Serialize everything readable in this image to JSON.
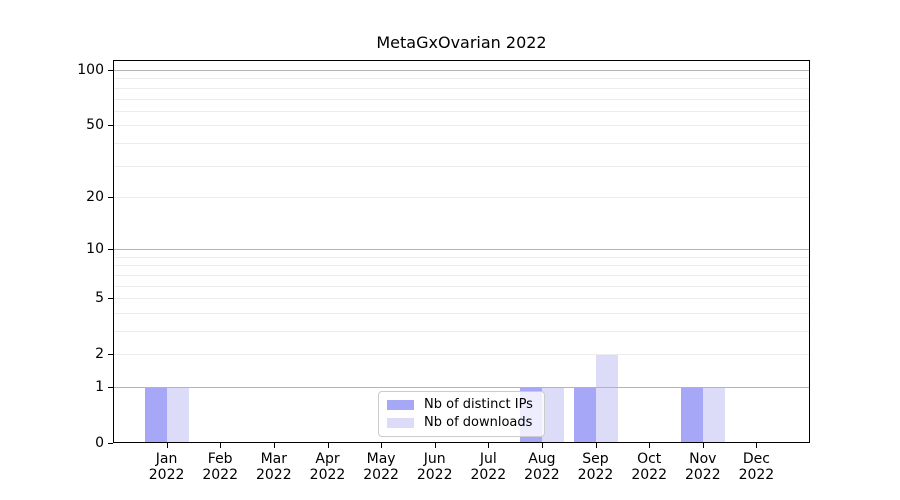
{
  "colors": {
    "distinct_ips": "#a7a7f7",
    "downloads": "#dcdcf9",
    "grid_major": "#b4b4b4",
    "grid_minor": "#ececec",
    "spine": "#000000",
    "legend_border": "#cccccc",
    "text": "#000000"
  },
  "chart_data": {
    "type": "bar",
    "title": "MetaGxOvarian 2022",
    "xlabel": "",
    "ylabel": "",
    "yscale": "log1p",
    "ylim": [
      0,
      113
    ],
    "grid": "on",
    "legend_position": "lower center",
    "months": [
      {
        "name": "Jan",
        "year": "2022"
      },
      {
        "name": "Feb",
        "year": "2022"
      },
      {
        "name": "Mar",
        "year": "2022"
      },
      {
        "name": "Apr",
        "year": "2022"
      },
      {
        "name": "May",
        "year": "2022"
      },
      {
        "name": "Jun",
        "year": "2022"
      },
      {
        "name": "Jul",
        "year": "2022"
      },
      {
        "name": "Aug",
        "year": "2022"
      },
      {
        "name": "Sep",
        "year": "2022"
      },
      {
        "name": "Oct",
        "year": "2022"
      },
      {
        "name": "Nov",
        "year": "2022"
      },
      {
        "name": "Dec",
        "year": "2022"
      }
    ],
    "categories": [
      "Jan 2022",
      "Feb 2022",
      "Mar 2022",
      "Apr 2022",
      "May 2022",
      "Jun 2022",
      "Jul 2022",
      "Aug 2022",
      "Sep 2022",
      "Oct 2022",
      "Nov 2022",
      "Dec 2022"
    ],
    "series": [
      {
        "key": "distinct-ips",
        "name": "Nb of distinct IPs",
        "color": "#a7a7f7",
        "values": [
          1,
          0,
          0,
          0,
          0,
          0,
          0,
          1,
          1,
          0,
          1,
          0
        ]
      },
      {
        "key": "downloads",
        "name": "Nb of downloads",
        "color": "#dcdcf9",
        "values": [
          1,
          0,
          0,
          0,
          0,
          0,
          0,
          1,
          2,
          0,
          1,
          0
        ]
      }
    ],
    "y_ticks": [
      {
        "label": "100",
        "value": 100
      },
      {
        "label": "50",
        "value": 50
      },
      {
        "label": "20",
        "value": 20
      },
      {
        "label": "10",
        "value": 10
      },
      {
        "label": "5",
        "value": 5
      },
      {
        "label": "2",
        "value": 2
      },
      {
        "label": "1",
        "value": 1
      },
      {
        "label": "0",
        "value": 0
      }
    ],
    "y_gridlines_major": [
      1,
      10,
      100
    ],
    "y_gridlines_minor": [
      2,
      3,
      4,
      5,
      6,
      7,
      8,
      9,
      20,
      30,
      40,
      50,
      60,
      70,
      80,
      90
    ]
  }
}
